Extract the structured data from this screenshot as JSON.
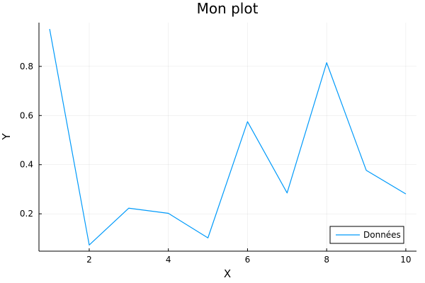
{
  "chart_data": {
    "type": "line",
    "title": "Mon plot",
    "xlabel": "X",
    "ylabel": "Y",
    "xlim": [
      0.73,
      10.27
    ],
    "ylim": [
      0.048,
      0.978
    ],
    "xticks": [
      2,
      4,
      6,
      8,
      10
    ],
    "yticks": [
      0.2,
      0.4,
      0.6,
      0.8
    ],
    "xtick_labels": [
      "2",
      "4",
      "6",
      "8",
      "10"
    ],
    "ytick_labels": [
      "0.2",
      "0.4",
      "0.6",
      "0.8"
    ],
    "grid": true,
    "legend_position": "bottom-right",
    "series": [
      {
        "name": "Données",
        "color": "#009AFA",
        "x": [
          1,
          2,
          3,
          4,
          5,
          6,
          7,
          8,
          9,
          10
        ],
        "y": [
          0.952,
          0.073,
          0.223,
          0.202,
          0.102,
          0.575,
          0.285,
          0.815,
          0.377,
          0.281
        ]
      }
    ]
  }
}
